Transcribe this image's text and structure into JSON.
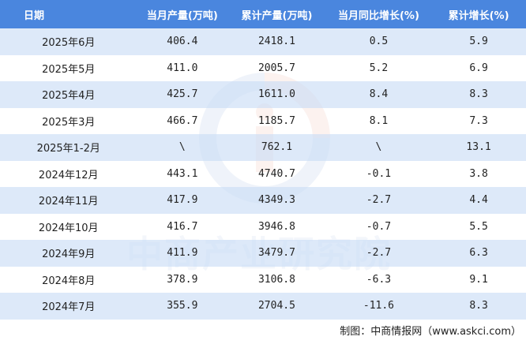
{
  "table": {
    "headers": {
      "date": "日期",
      "monthly_output": "当月产量(万吨)",
      "cumulative_output": "累计产量(万吨)",
      "monthly_yoy": "当月同比增长(%)",
      "cumulative_growth": "累计增长(%)"
    },
    "rows": [
      {
        "date": "2025年6月",
        "monthly_output": "406.4",
        "cumulative_output": "2418.1",
        "monthly_yoy": "0.5",
        "cumulative_growth": "5.9"
      },
      {
        "date": "2025年5月",
        "monthly_output": "411.0",
        "cumulative_output": "2005.7",
        "monthly_yoy": "5.2",
        "cumulative_growth": "6.9"
      },
      {
        "date": "2025年4月",
        "monthly_output": "425.7",
        "cumulative_output": "1611.0",
        "monthly_yoy": "8.4",
        "cumulative_growth": "8.3"
      },
      {
        "date": "2025年3月",
        "monthly_output": "466.7",
        "cumulative_output": "1185.7",
        "monthly_yoy": "8.1",
        "cumulative_growth": "7.3"
      },
      {
        "date": "2025年1-2月",
        "monthly_output": "\\",
        "cumulative_output": "762.1",
        "monthly_yoy": "\\",
        "cumulative_growth": "13.1"
      },
      {
        "date": "2024年12月",
        "monthly_output": "443.1",
        "cumulative_output": "4740.7",
        "monthly_yoy": "-0.1",
        "cumulative_growth": "3.8"
      },
      {
        "date": "2024年11月",
        "monthly_output": "417.9",
        "cumulative_output": "4349.3",
        "monthly_yoy": "-2.7",
        "cumulative_growth": "4.4"
      },
      {
        "date": "2024年10月",
        "monthly_output": "416.7",
        "cumulative_output": "3946.8",
        "monthly_yoy": "-0.7",
        "cumulative_growth": "5.5"
      },
      {
        "date": "2024年9月",
        "monthly_output": "411.9",
        "cumulative_output": "3479.7",
        "monthly_yoy": "-2.7",
        "cumulative_growth": "6.3"
      },
      {
        "date": "2024年8月",
        "monthly_output": "378.9",
        "cumulative_output": "3106.8",
        "monthly_yoy": "-6.3",
        "cumulative_growth": "9.1"
      },
      {
        "date": "2024年7月",
        "monthly_output": "355.9",
        "cumulative_output": "2704.5",
        "monthly_yoy": "-11.6",
        "cumulative_growth": "8.3"
      }
    ]
  },
  "watermark": {
    "text": "中商产业研究院",
    "icon": "company-logo-icon"
  },
  "footer": {
    "source": "制图：中商情报网（www.askci.com）"
  },
  "colors": {
    "header_bg": "#4a86de",
    "stripe": "#d6e4f8",
    "watermark_blue": "#2d66b8",
    "watermark_red": "#e0502a"
  }
}
